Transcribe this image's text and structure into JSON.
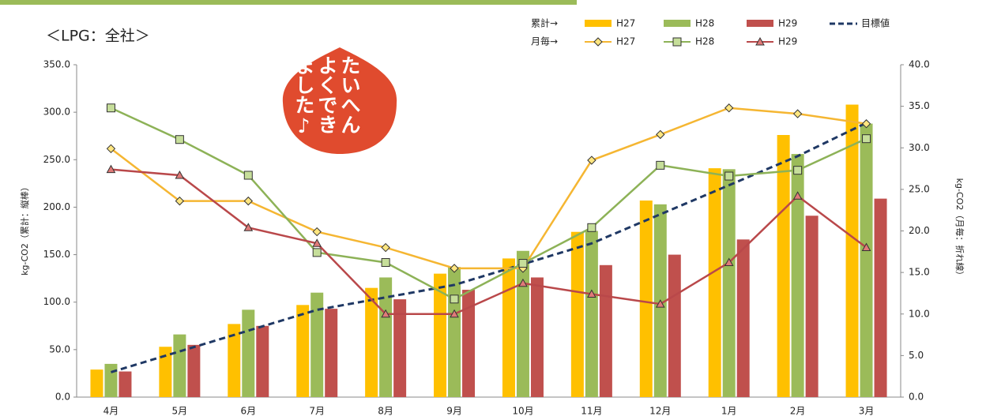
{
  "chart_data": {
    "type": "bar-line",
    "title": "＜LPG：全社＞",
    "stamp": "たいへんよくできました♪",
    "ylabel": "kg-CO2（累計：縦棒）",
    "y2label": "kg-CO2（月毎：折れ線）",
    "legend_rows": [
      "累計→",
      "月毎→"
    ],
    "categories": [
      "4月",
      "5月",
      "6月",
      "7月",
      "8月",
      "9月",
      "10月",
      "11月",
      "12月",
      "1月",
      "2月",
      "3月"
    ],
    "ylim": [
      0,
      350
    ],
    "yticks": [
      {
        "value": 0,
        "label": "0.0"
      },
      {
        "value": 50,
        "label": "50.0"
      },
      {
        "value": 100,
        "label": "100.0"
      },
      {
        "value": 150,
        "label": "150.0"
      },
      {
        "value": 200,
        "label": "200.0"
      },
      {
        "value": 250,
        "label": "250.0"
      },
      {
        "value": 300,
        "label": "300.0"
      },
      {
        "value": 350,
        "label": "350.0"
      }
    ],
    "y2lim": [
      0,
      40
    ],
    "y2ticks": [
      {
        "value": 0,
        "label": "0.0"
      },
      {
        "value": 5,
        "label": "5.0"
      },
      {
        "value": 10,
        "label": "10.0"
      },
      {
        "value": 15,
        "label": "15.0"
      },
      {
        "value": 20,
        "label": "20.0"
      },
      {
        "value": 25,
        "label": "25.0"
      },
      {
        "value": 30,
        "label": "30.0"
      },
      {
        "value": 35,
        "label": "35.0"
      },
      {
        "value": 40,
        "label": "40.0"
      }
    ],
    "series": [
      {
        "name": "H27",
        "kind": "bar",
        "color": "#ffc000",
        "values": [
          29,
          53,
          77,
          97,
          115,
          130,
          146,
          174,
          207,
          241,
          276,
          308
        ]
      },
      {
        "name": "H28",
        "kind": "bar",
        "color": "#9bbb59",
        "values": [
          35,
          66,
          92,
          110,
          126,
          137,
          154,
          175,
          203,
          240,
          256,
          288
        ]
      },
      {
        "name": "H29",
        "kind": "bar",
        "color": "#c0504d",
        "values": [
          27,
          55,
          75,
          93,
          103,
          113,
          126,
          139,
          150,
          166,
          191,
          209
        ]
      },
      {
        "name": "目標値",
        "kind": "line",
        "axis": "y2",
        "dashed": true,
        "color": "#1f3864",
        "values": [
          3.0,
          5.5,
          8.0,
          10.5,
          12.0,
          13.5,
          16.0,
          18.5,
          22.0,
          25.5,
          29.0,
          33.0
        ]
      },
      {
        "name": "H27",
        "kind": "line",
        "axis": "y2",
        "marker": "diamond",
        "color": "#f5b632",
        "values": [
          29.9,
          23.6,
          23.6,
          19.9,
          18.0,
          15.5,
          15.5,
          28.5,
          31.6,
          34.8,
          34.1,
          32.9
        ]
      },
      {
        "name": "H28",
        "kind": "line",
        "axis": "y2",
        "marker": "square",
        "color": "#8db257",
        "values": [
          34.8,
          31.0,
          26.7,
          17.4,
          16.2,
          11.8,
          16.1,
          20.4,
          27.9,
          26.6,
          27.3,
          31.1
        ]
      },
      {
        "name": "H29",
        "kind": "line",
        "axis": "y2",
        "marker": "triangle",
        "color": "#b9484a",
        "values": [
          27.4,
          26.7,
          20.4,
          18.5,
          10.0,
          10.0,
          13.7,
          12.4,
          11.2,
          16.2,
          24.2,
          18.0
        ]
      }
    ]
  }
}
